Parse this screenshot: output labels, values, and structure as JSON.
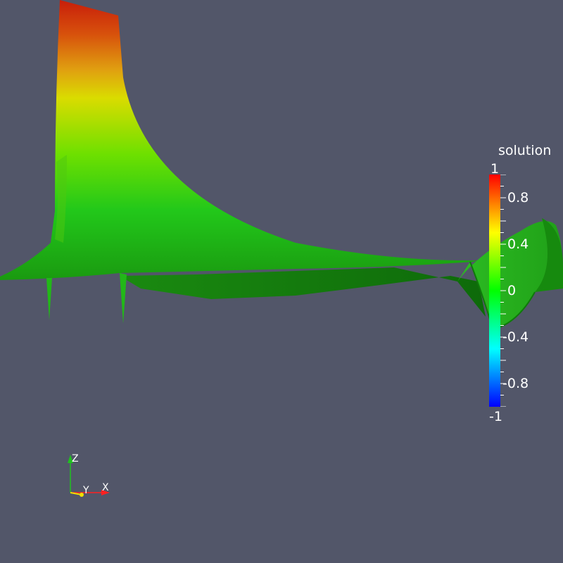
{
  "legend": {
    "title": "solution",
    "ticks": [
      {
        "value": 1,
        "label": "1"
      },
      {
        "value": 0.8,
        "label": "0.8"
      },
      {
        "value": 0.4,
        "label": "0.4"
      },
      {
        "value": 0,
        "label": "0"
      },
      {
        "value": -0.4,
        "label": "-0.4"
      },
      {
        "value": -0.8,
        "label": "-0.8"
      },
      {
        "value": -1,
        "label": "-1"
      }
    ],
    "range": [
      -1,
      1
    ],
    "colormap": [
      "#0000ff",
      "#00ffff",
      "#00ff00",
      "#ffff00",
      "#ff0000"
    ]
  },
  "axes": {
    "x_label": "X",
    "y_label": "Y",
    "z_label": "Z",
    "x_color": "#ff2020",
    "y_color": "#f0e000",
    "z_color": "#20c020"
  },
  "colors": {
    "background": "#525669"
  }
}
